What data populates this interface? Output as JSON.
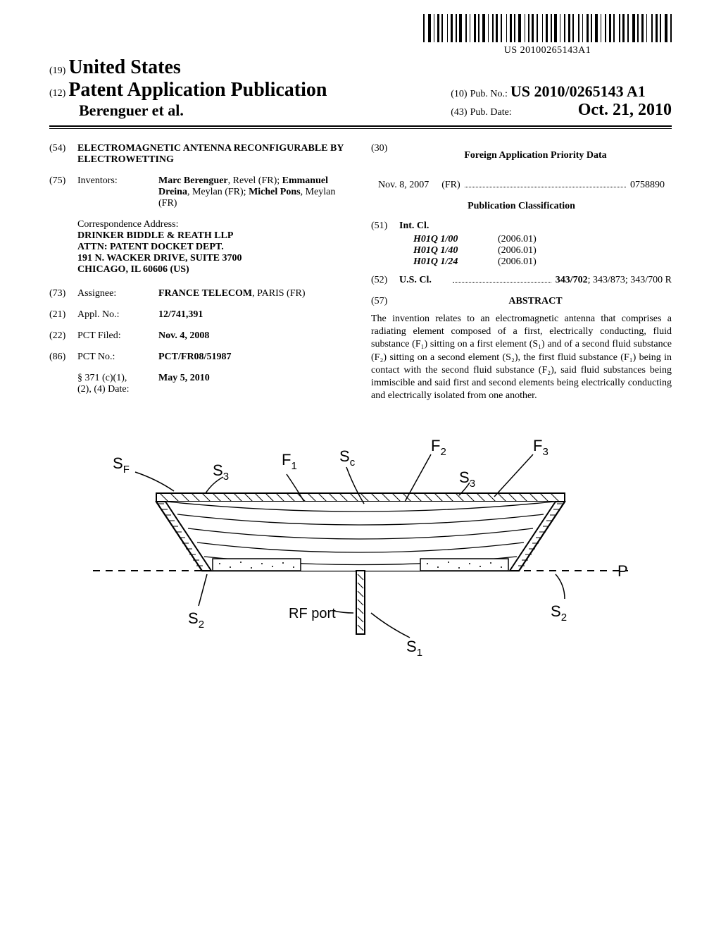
{
  "barcode": {
    "text": "US 20100265143A1"
  },
  "header": {
    "country_code": "(19)",
    "country": "United States",
    "doc_kind_code": "(12)",
    "doc_kind": "Patent Application Publication",
    "authors": "Berenguer et al.",
    "pub_no_code": "(10)",
    "pub_no_label": "Pub. No.:",
    "pub_no": "US 2010/0265143 A1",
    "pub_date_code": "(43)",
    "pub_date_label": "Pub. Date:",
    "pub_date": "Oct. 21, 2010"
  },
  "left": {
    "title_code": "(54)",
    "title": "ELECTROMAGNETIC ANTENNA RECONFIGURABLE BY ELECTROWETTING",
    "inventors_code": "(75)",
    "inventors_label": "Inventors:",
    "inventors": "<b>Marc Berenguer</b>, Revel (FR); <b>Emmanuel Dreina</b>, Meylan (FR); <b>Michel Pons</b>, Meylan (FR)",
    "corr_label": "Correspondence Address:",
    "corr_lines": [
      "DRINKER BIDDLE & REATH LLP",
      "ATTN: PATENT DOCKET DEPT.",
      "191 N. WACKER DRIVE, SUITE 3700",
      "CHICAGO, IL 60606 (US)"
    ],
    "assignee_code": "(73)",
    "assignee_label": "Assignee:",
    "assignee": "<b>FRANCE TELECOM</b>, PARIS (FR)",
    "appl_code": "(21)",
    "appl_label": "Appl. No.:",
    "appl_no": "12/741,391",
    "pct_filed_code": "(22)",
    "pct_filed_label": "PCT Filed:",
    "pct_filed": "Nov. 4, 2008",
    "pct_no_code": "(86)",
    "pct_no_label": "PCT No.:",
    "pct_no": "PCT/FR08/51987",
    "s371_label": "§ 371 (c)(1),\n(2), (4) Date:",
    "s371_date": "May 5, 2010"
  },
  "right": {
    "priority_code": "(30)",
    "priority_title": "Foreign Application Priority Data",
    "priority_date": "Nov. 8, 2007",
    "priority_country": "(FR)",
    "priority_no": "0758890",
    "pub_class_title": "Publication Classification",
    "intcl_code": "(51)",
    "intcl_label": "Int. Cl.",
    "intcl": [
      {
        "code": "H01Q 1/00",
        "edition": "(2006.01)"
      },
      {
        "code": "H01Q 1/40",
        "edition": "(2006.01)"
      },
      {
        "code": "H01Q 1/24",
        "edition": "(2006.01)"
      }
    ],
    "uscl_code": "(52)",
    "uscl_label": "U.S. Cl.",
    "uscl": "<b>343/702</b>; 343/873; 343/700 R",
    "abstract_code": "(57)",
    "abstract_label": "ABSTRACT",
    "abstract": "The invention relates to an electromagnetic antenna that comprises a radiating element composed of a first, electrically conducting, fluid substance (F₁) sitting on a first element (S₁) and of a second fluid substance (F₂) sitting on a second element (S₂), the first fluid substance (F₁) being in contact with the second fluid substance (F₂), said fluid substances being immiscible and said first and second elements being electrically conducting and electrically isolated from one another."
  },
  "figure": {
    "rf_port": "RF port",
    "labels": {
      "SF": "S",
      "SF_sub": "F",
      "F1": "F",
      "F1_sub": "1",
      "Sc": "S",
      "Sc_sub": "c",
      "F2": "F",
      "F2_sub": "2",
      "F3": "F",
      "F3_sub": "3",
      "S3": "S",
      "S3_sub": "3",
      "S2": "S",
      "S2_sub": "2",
      "S1": "S",
      "S1_sub": "1",
      "P": "P"
    }
  },
  "colors": {
    "text": "#000000",
    "background": "#ffffff"
  }
}
